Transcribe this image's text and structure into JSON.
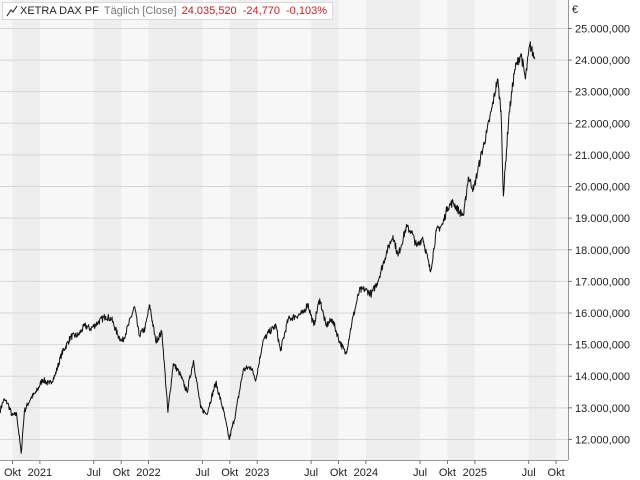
{
  "legend": {
    "icon": "line-chart-icon",
    "name": "XETRA DAX PF",
    "interval": "Täglich [Close]",
    "value": "24.035,520",
    "change": "-24,770",
    "change_pct": "-0,103%",
    "change_color": "#cc2222"
  },
  "currency": "€",
  "chart_data": {
    "type": "line",
    "title": "",
    "xlabel": "",
    "ylabel": "",
    "x_range": [
      "2020-08-20",
      "2025-11-10"
    ],
    "ylim": [
      11350,
      25900
    ],
    "grid": true,
    "y_ticks": [
      {
        "value": 12000,
        "label": "12.000,000"
      },
      {
        "value": 13000,
        "label": "13.000,000"
      },
      {
        "value": 14000,
        "label": "14.000,000"
      },
      {
        "value": 15000,
        "label": "15.000,000"
      },
      {
        "value": 16000,
        "label": "16.000,000"
      },
      {
        "value": 17000,
        "label": "17.000,000"
      },
      {
        "value": 18000,
        "label": "18.000,000"
      },
      {
        "value": 19000,
        "label": "19.000,000"
      },
      {
        "value": 20000,
        "label": "20.000,000"
      },
      {
        "value": 21000,
        "label": "21.000,000"
      },
      {
        "value": 22000,
        "label": "22.000,000"
      },
      {
        "value": 23000,
        "label": "23.000,000"
      },
      {
        "value": 24000,
        "label": "24.000,000"
      },
      {
        "value": 25000,
        "label": "25.000,000"
      }
    ],
    "x_ticks": [
      {
        "date": "2020-10-01",
        "label": "Okt"
      },
      {
        "date": "2021-01-01",
        "label": "2021"
      },
      {
        "date": "2021-07-01",
        "label": "Jul"
      },
      {
        "date": "2021-10-01",
        "label": "Okt"
      },
      {
        "date": "2022-01-01",
        "label": "2022"
      },
      {
        "date": "2022-07-01",
        "label": "Jul"
      },
      {
        "date": "2022-10-01",
        "label": "Okt"
      },
      {
        "date": "2023-01-01",
        "label": "2023"
      },
      {
        "date": "2023-07-01",
        "label": "Jul"
      },
      {
        "date": "2023-10-01",
        "label": "Okt"
      },
      {
        "date": "2024-01-01",
        "label": "2024"
      },
      {
        "date": "2024-07-01",
        "label": "Jul"
      },
      {
        "date": "2024-10-01",
        "label": "Okt"
      },
      {
        "date": "2025-01-01",
        "label": "2025"
      },
      {
        "date": "2025-07-01",
        "label": "Jul"
      },
      {
        "date": "2025-10-01",
        "label": "Okt"
      }
    ],
    "series": [
      {
        "name": "XETRA DAX PF",
        "color": "#111111",
        "points": [
          [
            "2020-08-20",
            12900
          ],
          [
            "2020-09-01",
            13250
          ],
          [
            "2020-09-15",
            13150
          ],
          [
            "2020-09-30",
            12750
          ],
          [
            "2020-10-15",
            12800
          ],
          [
            "2020-10-30",
            11560
          ],
          [
            "2020-11-10",
            12900
          ],
          [
            "2020-12-01",
            13300
          ],
          [
            "2020-12-20",
            13500
          ],
          [
            "2021-01-10",
            13900
          ],
          [
            "2021-02-01",
            13750
          ],
          [
            "2021-02-20",
            14000
          ],
          [
            "2021-03-15",
            14700
          ],
          [
            "2021-04-15",
            15250
          ],
          [
            "2021-05-10",
            15300
          ],
          [
            "2021-06-01",
            15600
          ],
          [
            "2021-06-20",
            15500
          ],
          [
            "2021-07-15",
            15700
          ],
          [
            "2021-08-10",
            15900
          ],
          [
            "2021-08-30",
            15800
          ],
          [
            "2021-09-20",
            15300
          ],
          [
            "2021-10-05",
            15100
          ],
          [
            "2021-10-25",
            15600
          ],
          [
            "2021-11-15",
            16200
          ],
          [
            "2021-11-30",
            15300
          ],
          [
            "2021-12-20",
            15500
          ],
          [
            "2022-01-05",
            16250
          ],
          [
            "2022-01-25",
            15100
          ],
          [
            "2022-02-15",
            15400
          ],
          [
            "2022-03-07",
            12860
          ],
          [
            "2022-03-25",
            14400
          ],
          [
            "2022-04-15",
            14100
          ],
          [
            "2022-05-10",
            13500
          ],
          [
            "2022-06-01",
            14500
          ],
          [
            "2022-06-25",
            13000
          ],
          [
            "2022-07-15",
            12800
          ],
          [
            "2022-08-15",
            13800
          ],
          [
            "2022-09-10",
            12900
          ],
          [
            "2022-09-29",
            12000
          ],
          [
            "2022-10-20",
            12800
          ],
          [
            "2022-11-15",
            14200
          ],
          [
            "2022-12-10",
            14300
          ],
          [
            "2022-12-28",
            13900
          ],
          [
            "2023-01-20",
            15100
          ],
          [
            "2023-02-10",
            15400
          ],
          [
            "2023-03-05",
            15600
          ],
          [
            "2023-03-20",
            14800
          ],
          [
            "2023-04-15",
            15800
          ],
          [
            "2023-05-10",
            15900
          ],
          [
            "2023-06-05",
            16000
          ],
          [
            "2023-06-20",
            16300
          ],
          [
            "2023-07-10",
            15600
          ],
          [
            "2023-07-30",
            16450
          ],
          [
            "2023-08-20",
            15600
          ],
          [
            "2023-09-10",
            15800
          ],
          [
            "2023-10-05",
            15100
          ],
          [
            "2023-10-26",
            14700
          ],
          [
            "2023-11-15",
            15700
          ],
          [
            "2023-12-10",
            16700
          ],
          [
            "2023-12-28",
            16750
          ],
          [
            "2024-01-20",
            16600
          ],
          [
            "2024-02-10",
            17000
          ],
          [
            "2024-03-10",
            17900
          ],
          [
            "2024-04-01",
            18450
          ],
          [
            "2024-04-18",
            17800
          ],
          [
            "2024-05-15",
            18700
          ],
          [
            "2024-06-01",
            18600
          ],
          [
            "2024-06-20",
            18100
          ],
          [
            "2024-07-10",
            18400
          ],
          [
            "2024-08-05",
            17300
          ],
          [
            "2024-08-25",
            18600
          ],
          [
            "2024-09-15",
            18800
          ],
          [
            "2024-10-01",
            19350
          ],
          [
            "2024-10-20",
            19500
          ],
          [
            "2024-11-10",
            19200
          ],
          [
            "2024-11-25",
            19100
          ],
          [
            "2024-12-10",
            20300
          ],
          [
            "2024-12-28",
            19900
          ],
          [
            "2025-01-20",
            20900
          ],
          [
            "2025-02-10",
            21700
          ],
          [
            "2025-02-28",
            22500
          ],
          [
            "2025-03-18",
            23400
          ],
          [
            "2025-03-30",
            22400
          ],
          [
            "2025-04-07",
            19700
          ],
          [
            "2025-04-25",
            22200
          ],
          [
            "2025-05-15",
            23700
          ],
          [
            "2025-06-05",
            24200
          ],
          [
            "2025-06-20",
            23400
          ],
          [
            "2025-07-05",
            24500
          ],
          [
            "2025-07-15",
            24200
          ],
          [
            "2025-07-22",
            24035
          ]
        ]
      }
    ]
  }
}
